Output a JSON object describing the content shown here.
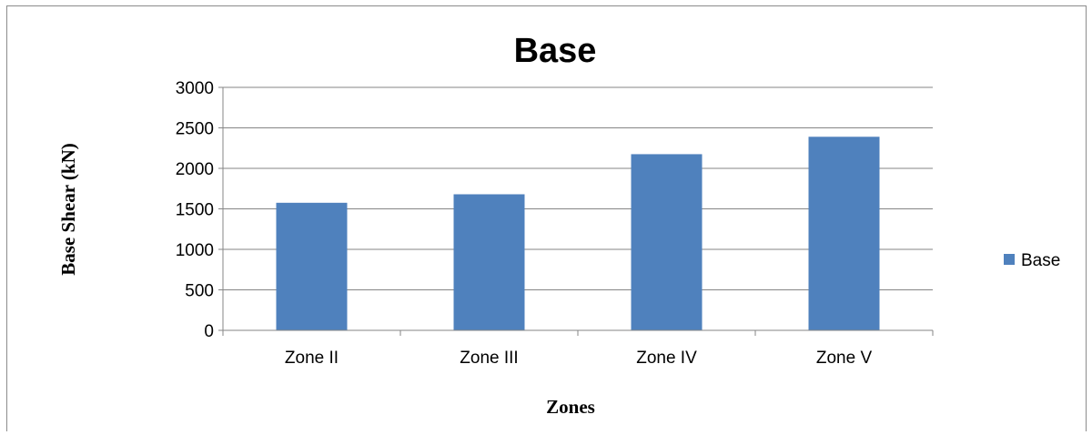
{
  "chart_data": {
    "type": "bar",
    "title": "Base",
    "xlabel": "Zones",
    "ylabel": "Base Shear (kN)",
    "categories": [
      "Zone II",
      "Zone III",
      "Zone IV",
      "Zone V"
    ],
    "series": [
      {
        "name": "Base",
        "values": [
          1575,
          1680,
          2175,
          2390
        ],
        "color": "#4f81bd"
      }
    ],
    "ylim": [
      0,
      3000
    ],
    "yticks": [
      "0",
      "500",
      "1000",
      "1500",
      "2000",
      "2500",
      "3000"
    ],
    "grid": true,
    "legend_position": "right"
  }
}
